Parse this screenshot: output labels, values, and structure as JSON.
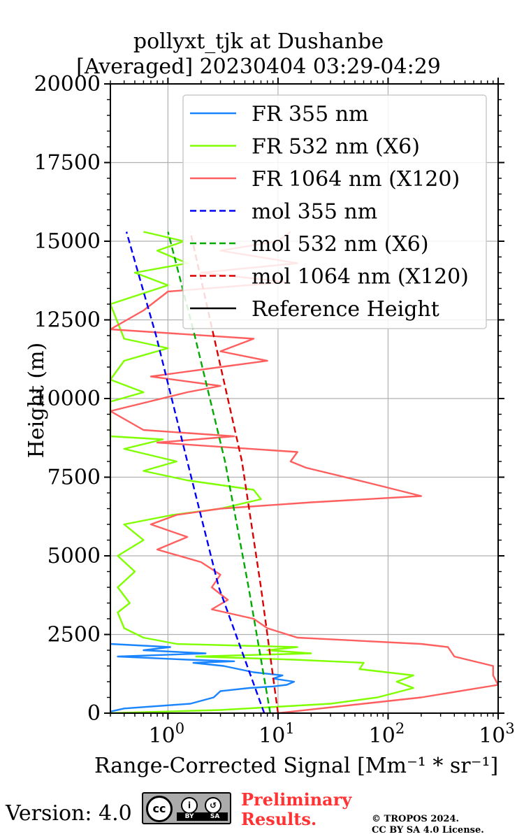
{
  "title_line1": "pollyxt_tjk at Dushanbe",
  "title_line2": "[Averaged] 20230404 03:29-04:29",
  "version": "Version: 4.0",
  "preliminary": [
    "Preliminary",
    "Results."
  ],
  "copyright": [
    "© TROPOS 2024.",
    "CC BY SA 4.0 License."
  ],
  "license_badge": {
    "top": "cc",
    "by": "BY",
    "sa": "SA"
  },
  "chart_data": {
    "type": "line",
    "title": "pollyxt_tjk at Dushanbe [Averaged] 20230404 03:29-04:29",
    "xlabel": "Range-Corrected Signal [Mm⁻¹ * sr⁻¹]",
    "ylabel": "Height (m)",
    "xscale": "log",
    "xlim": [
      0.3,
      1000
    ],
    "ylim": [
      0,
      20000
    ],
    "x_ticks": [
      1,
      10,
      100,
      1000
    ],
    "x_tick_labels": [
      "10^0",
      "10^1",
      "10^2",
      "10^3"
    ],
    "y_ticks": [
      0,
      2500,
      5000,
      7500,
      10000,
      12500,
      15000,
      17500,
      20000
    ],
    "grid": true,
    "legend_position": "top-right",
    "series": [
      {
        "name": "FR 355 nm",
        "color": "#1a85ff",
        "style": "solid",
        "points": [
          [
            0.3,
            50
          ],
          [
            0.4,
            150
          ],
          [
            1.6,
            300
          ],
          [
            2.6,
            500
          ],
          [
            3.0,
            700
          ],
          [
            3.4,
            720
          ],
          [
            5.5,
            800
          ],
          [
            9,
            850
          ],
          [
            12,
            900
          ],
          [
            14,
            1000
          ],
          [
            9,
            1100
          ],
          [
            11,
            1200
          ],
          [
            6,
            1300
          ],
          [
            3.2,
            1500
          ],
          [
            1.7,
            1600
          ],
          [
            4,
            1650
          ],
          [
            1.5,
            1700
          ],
          [
            0.35,
            1800
          ],
          [
            2.2,
            1900
          ],
          [
            0.6,
            2000
          ],
          [
            1.05,
            2100
          ],
          [
            0.3,
            2200
          ]
        ]
      },
      {
        "name": "FR 532 nm (X6)",
        "color": "#80ff00",
        "style": "solid",
        "points": [
          [
            0.3,
            0
          ],
          [
            3,
            100
          ],
          [
            30,
            300
          ],
          [
            80,
            500
          ],
          [
            170,
            800
          ],
          [
            120,
            1000
          ],
          [
            170,
            1200
          ],
          [
            55,
            1400
          ],
          [
            60,
            1600
          ],
          [
            14,
            1700
          ],
          [
            1.8,
            1800
          ],
          [
            20,
            1900
          ],
          [
            8,
            2000
          ],
          [
            15,
            2100
          ],
          [
            1.2,
            2200
          ],
          [
            0.6,
            2400
          ],
          [
            0.4,
            2700
          ],
          [
            0.35,
            3200
          ],
          [
            0.45,
            3500
          ],
          [
            0.35,
            4000
          ],
          [
            0.5,
            4500
          ],
          [
            0.35,
            5000
          ],
          [
            0.6,
            5500
          ],
          [
            0.4,
            6000
          ],
          [
            1.1,
            6300
          ],
          [
            3,
            6500
          ],
          [
            7,
            6800
          ],
          [
            6,
            7100
          ],
          [
            1.5,
            7400
          ],
          [
            0.6,
            7700
          ],
          [
            1.2,
            8000
          ],
          [
            0.4,
            8400
          ],
          [
            0.9,
            8700
          ],
          [
            0.3,
            8800
          ],
          [
            0.3,
            9900
          ],
          [
            0.6,
            10200
          ],
          [
            0.3,
            10600
          ],
          [
            0.4,
            11200
          ],
          [
            1,
            11600
          ],
          [
            0.4,
            11900
          ],
          [
            0.3,
            13000
          ],
          [
            1,
            13600
          ],
          [
            0.5,
            14000
          ],
          [
            1.5,
            14300
          ],
          [
            0.8,
            14700
          ],
          [
            1.4,
            15000
          ],
          [
            0.6,
            15300
          ]
        ]
      },
      {
        "name": "FR 1064 nm (X120)",
        "color": "#ff5f5f",
        "style": "solid",
        "points": [
          [
            10,
            0
          ],
          [
            60,
            300
          ],
          [
            200,
            500
          ],
          [
            1000,
            900
          ],
          [
            900,
            1200
          ],
          [
            900,
            1500
          ],
          [
            400,
            1800
          ],
          [
            350,
            2100
          ],
          [
            200,
            2200
          ],
          [
            15,
            2400
          ],
          [
            8,
            2700
          ],
          [
            6,
            3000
          ],
          [
            2.5,
            3300
          ],
          [
            3.5,
            3600
          ],
          [
            2.5,
            4000
          ],
          [
            3,
            4400
          ],
          [
            2,
            4800
          ],
          [
            0.8,
            5200
          ],
          [
            1.5,
            5600
          ],
          [
            0.7,
            6000
          ],
          [
            1.2,
            6300
          ],
          [
            3,
            6500
          ],
          [
            20,
            6700
          ],
          [
            200,
            6900
          ],
          [
            70,
            7300
          ],
          [
            18,
            7800
          ],
          [
            13,
            8000
          ],
          [
            15,
            8300
          ],
          [
            0.8,
            8600
          ],
          [
            4,
            8800
          ],
          [
            0.6,
            9000
          ],
          [
            0.3,
            9600
          ],
          [
            1.5,
            10200
          ],
          [
            3,
            10400
          ],
          [
            0.7,
            10700
          ],
          [
            3,
            11000
          ],
          [
            8,
            11200
          ],
          [
            3,
            11500
          ],
          [
            6,
            11900
          ],
          [
            0.3,
            12200
          ],
          [
            0.6,
            12800
          ],
          [
            1,
            13400
          ],
          [
            12,
            13700
          ],
          [
            2,
            14000
          ],
          [
            15,
            14300
          ],
          [
            3,
            14700
          ],
          [
            10,
            15000
          ],
          [
            13,
            15300
          ]
        ]
      },
      {
        "name": "mol 355 nm",
        "color": "#0000ff",
        "style": "dashed",
        "points": [
          [
            7.5,
            0
          ],
          [
            2.9,
            4000
          ],
          [
            1.5,
            8000
          ],
          [
            0.78,
            12000
          ],
          [
            0.42,
            15300
          ]
        ]
      },
      {
        "name": "mol 532 nm (X6)",
        "color": "#00aa00",
        "style": "dashed",
        "points": [
          [
            8.5,
            0
          ],
          [
            5.4,
            4000
          ],
          [
            3.3,
            8000
          ],
          [
            1.75,
            12000
          ],
          [
            1.0,
            15300
          ]
        ]
      },
      {
        "name": "mol 1064 nm (X120)",
        "color": "#dd0000",
        "style": "dashed",
        "points": [
          [
            10,
            0
          ],
          [
            7,
            4000
          ],
          [
            4.7,
            8000
          ],
          [
            2.6,
            12000
          ],
          [
            1.6,
            15300
          ]
        ]
      },
      {
        "name": "Reference Height",
        "color": "#000000",
        "style": "solid",
        "points": []
      }
    ]
  }
}
